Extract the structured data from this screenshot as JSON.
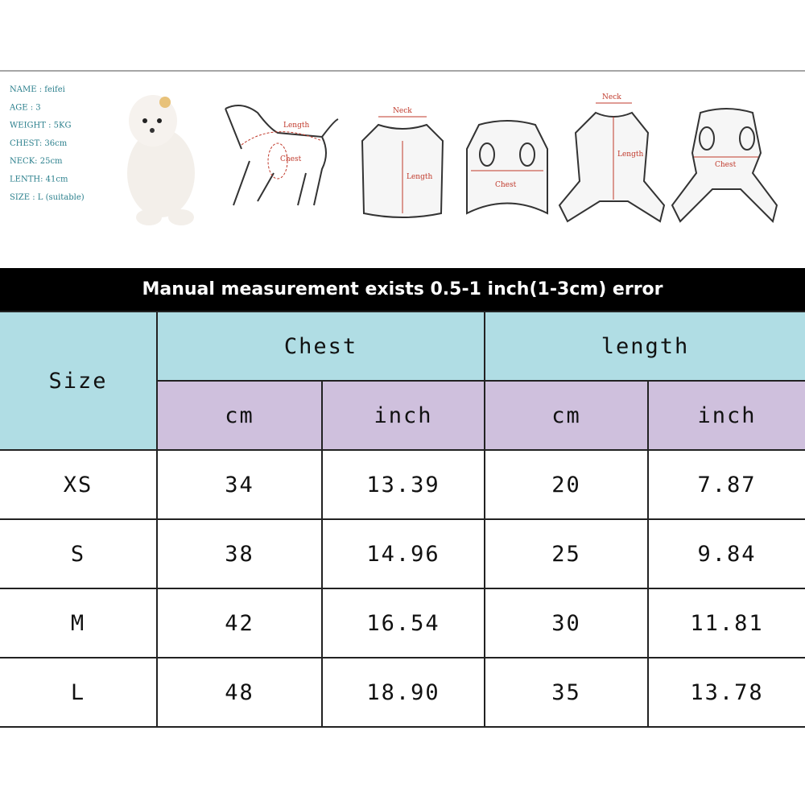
{
  "info": [
    "NAME : feifei",
    "AGE : 3",
    "WEIGHT : 5KG",
    "CHEST: 36cm",
    "NECK: 25cm",
    "LENTH: 41cm",
    "SIZE : L (suitable)"
  ],
  "diagrams": {
    "dog": [
      "Length",
      "Chest"
    ],
    "shirt_front": [
      "Neck",
      "Length"
    ],
    "shirt_back": [
      "Chest"
    ],
    "suit_front": [
      "Neck",
      "Length"
    ],
    "suit_back": [
      "Chest"
    ]
  },
  "banner": "Manual measurement exists 0.5-1 inch(1-3cm) error",
  "table": {
    "header": {
      "size": "Size",
      "chest": "Chest",
      "length": "length",
      "units": [
        "cm",
        "inch",
        "cm",
        "inch"
      ]
    },
    "rows": [
      [
        "XS",
        "34",
        "13.39",
        "20",
        "7.87"
      ],
      [
        "S",
        "38",
        "14.96",
        "25",
        "9.84"
      ],
      [
        "M",
        "42",
        "16.54",
        "30",
        "11.81"
      ],
      [
        "L",
        "48",
        "18.90",
        "35",
        "13.78"
      ]
    ]
  }
}
